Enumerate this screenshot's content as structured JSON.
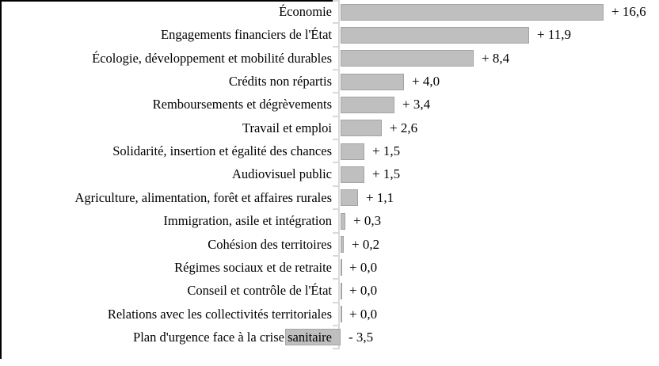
{
  "chart_data": {
    "type": "bar",
    "orientation": "horizontal",
    "title": "",
    "xlabel": "",
    "ylabel": "",
    "grid": false,
    "legend": false,
    "xlim": [
      -3.5,
      16.6
    ],
    "unit_suffix": "",
    "categories": [
      "Économie",
      "Engagements financiers de l'État",
      "Écologie, développement et mobilité durables",
      "Crédits non répartis",
      "Remboursements et dégrèvements",
      "Travail et emploi",
      "Solidarité, insertion et égalité des chances",
      "Audiovisuel public",
      "Agriculture, alimentation, forêt et affaires rurales",
      "Immigration, asile et intégration",
      "Cohésion des territoires",
      "Régimes sociaux et de retraite",
      "Conseil et contrôle de l'État",
      "Relations avec les collectivités territoriales",
      "Plan d'urgence face à la crise sanitaire"
    ],
    "values": [
      16.6,
      11.9,
      8.4,
      4.0,
      3.4,
      2.6,
      1.5,
      1.5,
      1.1,
      0.3,
      0.2,
      0.0,
      0.0,
      0.0,
      -3.5
    ],
    "value_labels": [
      "+ 16,6",
      "+ 11,9",
      "+ 8,4",
      "+ 4,0",
      "+ 3,4",
      "+ 2,6",
      "+ 1,5",
      "+ 1,5",
      "+ 1,1",
      "+ 0,3",
      "+ 0,2",
      "+ 0,0",
      "+ 0,0",
      "+ 0,0",
      "- 3,5"
    ],
    "colors": {
      "bar_fill": "#bfbfbf",
      "bar_border": "#a3a3a3",
      "axis": "#d9d9d9",
      "text": "#000000",
      "frame": "#000000"
    }
  }
}
